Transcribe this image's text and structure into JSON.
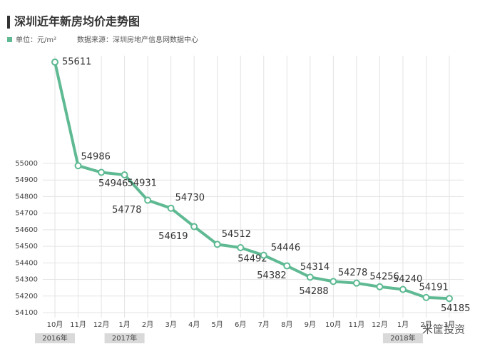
{
  "chart_data": {
    "type": "line",
    "title": "深圳近年新房均价走势图",
    "unit": "单位：元/m²",
    "source": "数据来源：深圳房地产信息网数据中心",
    "categories": [
      "10月",
      "11月",
      "12月",
      "1月",
      "2月",
      "3月",
      "4月",
      "5月",
      "6月",
      "7月",
      "8月",
      "9月",
      "10月",
      "11月",
      "12月",
      "1月",
      "2月",
      "3月"
    ],
    "years": [
      "2016年",
      "2017年",
      "2018年"
    ],
    "series": [
      {
        "name": "新房均价",
        "color": "#5fba93",
        "values": [
          55611,
          54986,
          54946,
          54931,
          54778,
          54730,
          54619,
          54512,
          54492,
          54446,
          54382,
          54314,
          54288,
          54278,
          54256,
          54240,
          54191,
          54185
        ]
      }
    ],
    "ylim": [
      54070,
      55650
    ],
    "yticks": [
      54100,
      54200,
      54300,
      54400,
      54500,
      54600,
      54700,
      54800,
      54900,
      55000
    ],
    "grid": true,
    "watermark": "米筐投资"
  }
}
